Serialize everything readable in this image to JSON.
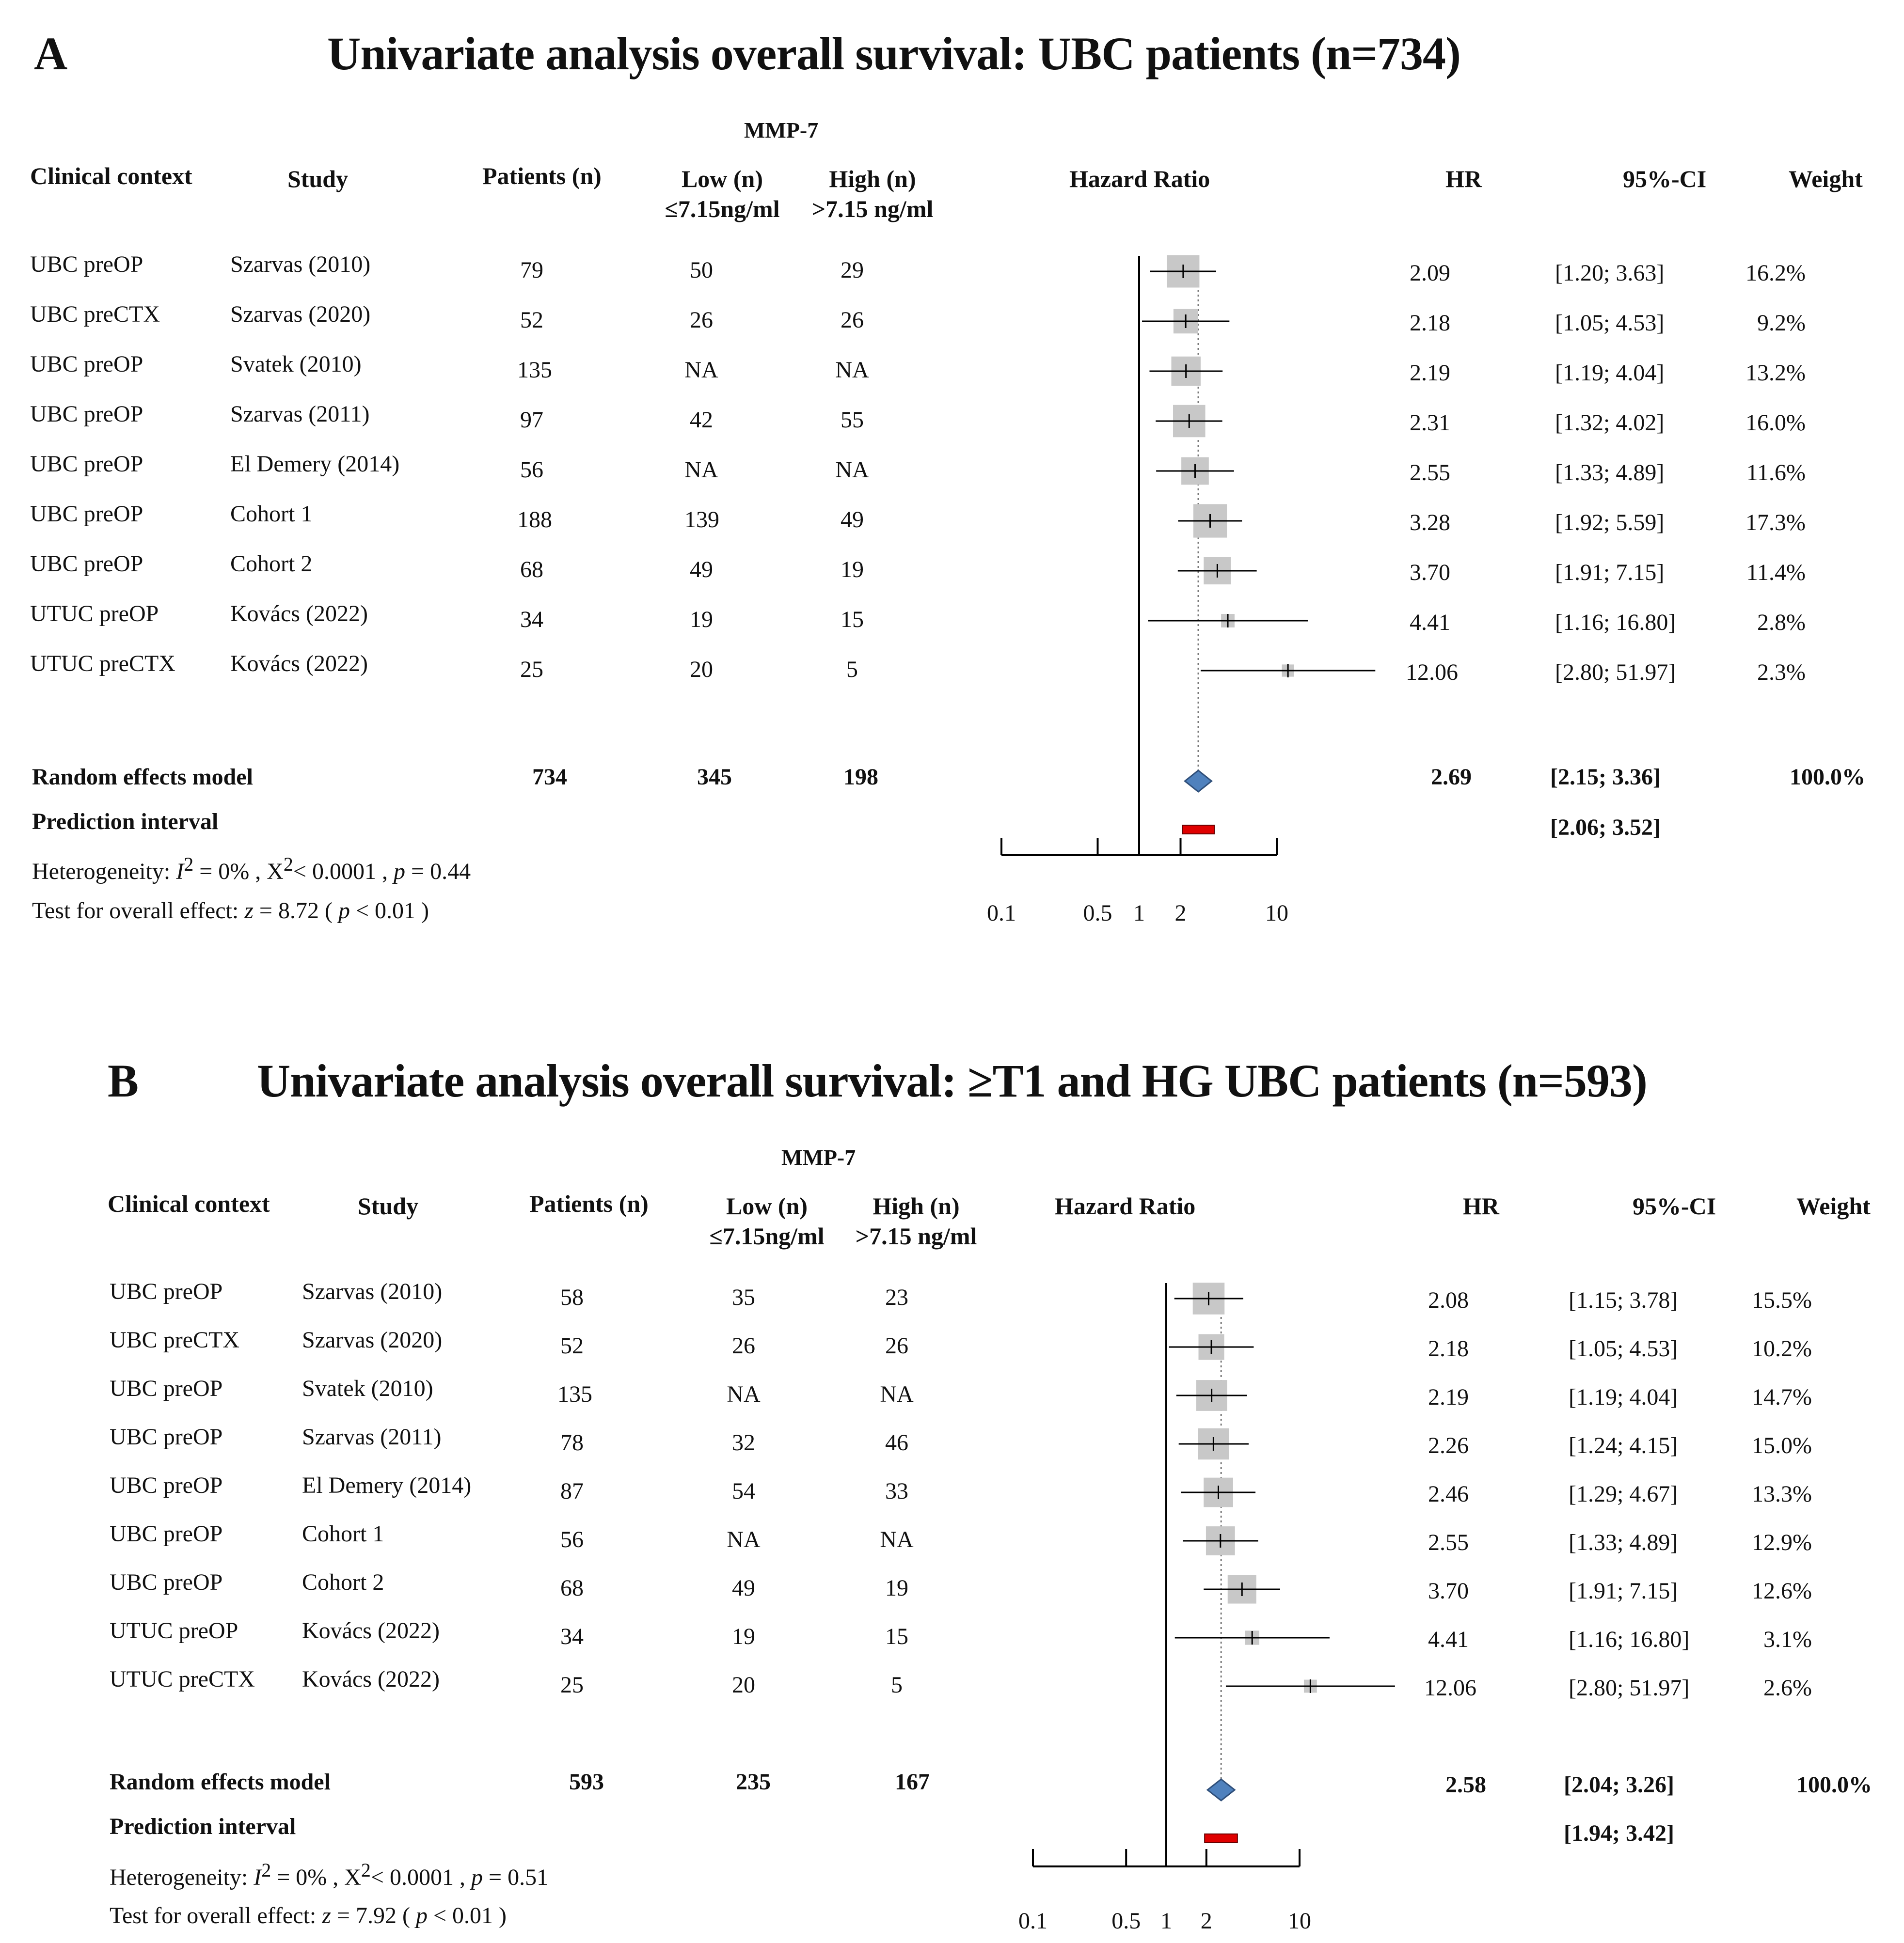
{
  "chart_data": [
    {
      "type": "forest",
      "panel_letter": "A",
      "title": "Univariate analysis overall survival: UBC patients (n=734)",
      "group_header": "MMP-7",
      "headers": {
        "context": "Clinical context",
        "study": "Study",
        "patients": "Patients (n)",
        "low": "Low (n)",
        "low_sub": "≤7.15ng/ml",
        "high": "High (n)",
        "high_sub": ">7.15 ng/ml",
        "plot": "Hazard  Ratio",
        "hr": "HR",
        "ci": "95%-CI",
        "weight": "Weight"
      },
      "rows": [
        {
          "context": "UBC  preOP",
          "study": "Szarvas (2010)",
          "patients": "79",
          "low": "50",
          "high": "29",
          "hr": 2.09,
          "lower": 1.2,
          "upper": 3.63,
          "hr_text": "2.09",
          "ci_text": "[1.20;  3.63]",
          "weight": "16.2%",
          "w": 16.2
        },
        {
          "context": "UBC  preCTX",
          "study": "Szarvas (2020)",
          "patients": "52",
          "low": "26",
          "high": "26",
          "hr": 2.18,
          "lower": 1.05,
          "upper": 4.53,
          "hr_text": "2.18",
          "ci_text": "[1.05;  4.53]",
          "weight": "9.2%",
          "w": 9.2
        },
        {
          "context": "UBC  preOP",
          "study": "Svatek (2010)",
          "patients": "135",
          "low": "NA",
          "high": "NA",
          "hr": 2.19,
          "lower": 1.19,
          "upper": 4.04,
          "hr_text": "2.19",
          "ci_text": "[1.19;  4.04]",
          "weight": "13.2%",
          "w": 13.2
        },
        {
          "context": "UBC  preOP",
          "study": "Szarvas (2011)",
          "patients": "97",
          "low": "42",
          "high": "55",
          "hr": 2.31,
          "lower": 1.32,
          "upper": 4.02,
          "hr_text": "2.31",
          "ci_text": "[1.32;  4.02]",
          "weight": "16.0%",
          "w": 16.0
        },
        {
          "context": "UBC  preOP",
          "study": "El Demery  (2014)",
          "patients": "56",
          "low": "NA",
          "high": "NA",
          "hr": 2.55,
          "lower": 1.33,
          "upper": 4.89,
          "hr_text": "2.55",
          "ci_text": "[1.33;  4.89]",
          "weight": "11.6%",
          "w": 11.6
        },
        {
          "context": "UBC  preOP",
          "study": "Cohort 1",
          "patients": "188",
          "low": "139",
          "high": "49",
          "hr": 3.28,
          "lower": 1.92,
          "upper": 5.59,
          "hr_text": "3.28",
          "ci_text": "[1.92;  5.59]",
          "weight": "17.3%",
          "w": 17.3
        },
        {
          "context": "UBC  preOP",
          "study": "Cohort 2",
          "patients": "68",
          "low": "49",
          "high": "19",
          "hr": 3.7,
          "lower": 1.91,
          "upper": 7.15,
          "hr_text": "3.70",
          "ci_text": "[1.91;  7.15]",
          "weight": "11.4%",
          "w": 11.4
        },
        {
          "context": "UTUC  preOP",
          "study": "Kovács (2022)",
          "patients": "34",
          "low": "19",
          "high": "15",
          "hr": 4.41,
          "lower": 1.16,
          "upper": 16.8,
          "hr_text": "4.41",
          "ci_text": "[1.16;  16.80]",
          "weight": "2.8%",
          "w": 2.8
        },
        {
          "context": "UTUC  preCTX",
          "study": "Kovács (2022)",
          "patients": "25",
          "low": "20",
          "high": "5",
          "hr": 12.06,
          "lower": 2.8,
          "upper": 51.97,
          "hr_text": "12.06",
          "ci_text": "[2.80;  51.97]",
          "weight": "2.3%",
          "w": 2.3
        }
      ],
      "summary": {
        "label": "Random  effects model",
        "patients": "734",
        "low": "345",
        "high": "198",
        "hr": 2.69,
        "lower": 2.15,
        "upper": 3.36,
        "hr_text": "2.69",
        "ci_text": "[2.15;  3.36]",
        "weight": "100.0%"
      },
      "prediction": {
        "label": "Prediction  interval",
        "lower": 2.06,
        "upper": 3.52,
        "ci_text": "[2.06;  3.52]"
      },
      "heterogeneity": {
        "label": "Heterogeneity: ",
        "i2_sym": "I",
        "sup1": "2",
        "i2": " = 0%   , X",
        "sup2": "2",
        "chi": "< 0.0001   , ",
        "p_sym": "p",
        "p": " = 0.44"
      },
      "overall": {
        "label": "Test for  overall  effect:   ",
        "z_sym": "z",
        "z": "  =   8.72   ( ",
        "p_sym": "p",
        "p": " < 0.01 )"
      },
      "x_axis": {
        "scale": "log",
        "ticks": [
          0.1,
          0.5,
          1,
          2,
          10
        ],
        "tick_labels": [
          "0.1",
          "0.5",
          "1",
          "2",
          "10"
        ],
        "null_value": 1
      }
    },
    {
      "type": "forest",
      "panel_letter": "B",
      "title": "Univariate analysis overall survival: ≥T1 and HG UBC patients (n=593)",
      "group_header": "MMP-7",
      "headers": {
        "context": "Clinical context",
        "study": "Study",
        "patients": "Patients (n)",
        "low": "Low (n)",
        "low_sub": "≤7.15ng/ml",
        "high": "High (n)",
        "high_sub": ">7.15 ng/ml",
        "plot": "Hazard  Ratio",
        "hr": "HR",
        "ci": "95%-CI",
        "weight": "Weight"
      },
      "rows": [
        {
          "context": "UBC  preOP",
          "study": "Szarvas (2010)",
          "patients": "58",
          "low": "35",
          "high": "23",
          "hr": 2.08,
          "lower": 1.15,
          "upper": 3.78,
          "hr_text": "2.08",
          "ci_text": "[1.15;  3.78]",
          "weight": "15.5%",
          "w": 15.5
        },
        {
          "context": "UBC  preCTX",
          "study": "Szarvas (2020)",
          "patients": "52",
          "low": "26",
          "high": "26",
          "hr": 2.18,
          "lower": 1.05,
          "upper": 4.53,
          "hr_text": "2.18",
          "ci_text": "[1.05;  4.53]",
          "weight": "10.2%",
          "w": 10.2
        },
        {
          "context": "UBC  preOP",
          "study": "Svatek (2010)",
          "patients": "135",
          "low": "NA",
          "high": "NA",
          "hr": 2.19,
          "lower": 1.19,
          "upper": 4.04,
          "hr_text": "2.19",
          "ci_text": "[1.19;  4.04]",
          "weight": "14.7%",
          "w": 14.7
        },
        {
          "context": "UBC  preOP",
          "study": "Szarvas (2011)",
          "patients": "78",
          "low": "32",
          "high": "46",
          "hr": 2.26,
          "lower": 1.24,
          "upper": 4.15,
          "hr_text": "2.26",
          "ci_text": "[1.24;  4.15]",
          "weight": "15.0%",
          "w": 15.0
        },
        {
          "context": "UBC  preOP",
          "study": "El Demery  (2014)",
          "patients": "87",
          "low": "54",
          "high": "33",
          "hr": 2.46,
          "lower": 1.29,
          "upper": 4.67,
          "hr_text": "2.46",
          "ci_text": "[1.29;  4.67]",
          "weight": "13.3%",
          "w": 13.3
        },
        {
          "context": "UBC  preOP",
          "study": "Cohort 1",
          "patients": "56",
          "low": "NA",
          "high": "NA",
          "hr": 2.55,
          "lower": 1.33,
          "upper": 4.89,
          "hr_text": "2.55",
          "ci_text": "[1.33;  4.89]",
          "weight": "12.9%",
          "w": 12.9
        },
        {
          "context": "UBC  preOP",
          "study": "Cohort 2",
          "patients": "68",
          "low": "49",
          "high": "19",
          "hr": 3.7,
          "lower": 1.91,
          "upper": 7.15,
          "hr_text": "3.70",
          "ci_text": "[1.91;  7.15]",
          "weight": "12.6%",
          "w": 12.6
        },
        {
          "context": "UTUC  preOP",
          "study": "Kovács (2022)",
          "patients": "34",
          "low": "19",
          "high": "15",
          "hr": 4.41,
          "lower": 1.16,
          "upper": 16.8,
          "hr_text": "4.41",
          "ci_text": "[1.16;  16.80]",
          "weight": "3.1%",
          "w": 3.1
        },
        {
          "context": "UTUC  preCTX",
          "study": "Kovács (2022)",
          "patients": "25",
          "low": "20",
          "high": "5",
          "hr": 12.06,
          "lower": 2.8,
          "upper": 51.97,
          "hr_text": "12.06",
          "ci_text": "[2.80;  51.97]",
          "weight": "2.6%",
          "w": 2.6
        }
      ],
      "summary": {
        "label": "Random  effects model",
        "patients": "593",
        "low": "235",
        "high": "167",
        "hr": 2.58,
        "lower": 2.04,
        "upper": 3.26,
        "hr_text": "2.58",
        "ci_text": "[2.04;  3.26]",
        "weight": "100.0%"
      },
      "prediction": {
        "label": "Prediction  interval",
        "lower": 1.94,
        "upper": 3.42,
        "ci_text": "[1.94;  3.42]"
      },
      "heterogeneity": {
        "label": "Heterogeneity: ",
        "i2_sym": "I",
        "sup1": "2",
        "i2": " = 0%   , X",
        "sup2": "2",
        "chi": "< 0.0001   , ",
        "p_sym": "p",
        "p": " = 0.51"
      },
      "overall": {
        "label": "Test for  overall  effect:   ",
        "z_sym": "z",
        "z": "  =   7.92   ( ",
        "p_sym": "p",
        "p": " < 0.01 )"
      },
      "x_axis": {
        "scale": "log",
        "ticks": [
          0.1,
          0.5,
          1,
          2,
          10
        ],
        "tick_labels": [
          "0.1",
          "0.5",
          "1",
          "2",
          "10"
        ],
        "null_value": 1
      }
    }
  ],
  "colors": {
    "box": "#c8c8c8",
    "diamond": "#4f81bd",
    "prediction": "#e00000",
    "line": "#000000"
  }
}
